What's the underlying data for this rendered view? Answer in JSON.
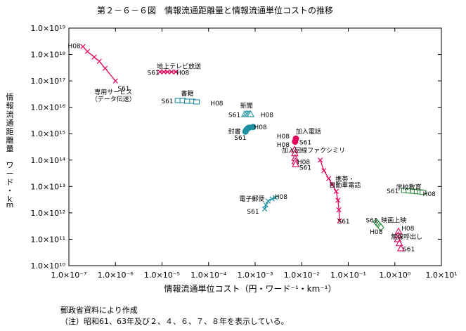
{
  "chart_data": {
    "type": "scatter",
    "title": "第２－６－６図　情報流通距離量と情報流通単位コストの推移",
    "xlabel": "情報流通単位コスト（円・ワード⁻¹・km⁻¹）",
    "ylabel": "情報流通距離量　ワード・km",
    "xscale": "log",
    "yscale": "log",
    "xlim": [
      1e-07,
      10
    ],
    "ylim": [
      10000000000.0,
      1e+19
    ],
    "grid": false,
    "x_ticks": [
      {
        "value": 1e-07,
        "label": "1.0×10⁻⁷"
      },
      {
        "value": 1e-06,
        "label": "1.0×10⁻⁶"
      },
      {
        "value": 1e-05,
        "label": "1.0×10⁻⁵"
      },
      {
        "value": 0.0001,
        "label": "1.0×10⁻⁴"
      },
      {
        "value": 0.001,
        "label": "1.0×10⁻³"
      },
      {
        "value": 0.01,
        "label": "1.0×10⁻²"
      },
      {
        "value": 0.1,
        "label": "1.0×10⁻¹"
      },
      {
        "value": 1,
        "label": "1.0×10⁰"
      },
      {
        "value": 10,
        "label": "1.0×10¹"
      }
    ],
    "y_ticks": [
      {
        "value": 10000000000.0,
        "label": "1.0×10¹⁰"
      },
      {
        "value": 100000000000.0,
        "label": "1.0×10¹¹"
      },
      {
        "value": 1000000000000.0,
        "label": "1.0×10¹²"
      },
      {
        "value": 10000000000000.0,
        "label": "1.0×10¹³"
      },
      {
        "value": 100000000000000.0,
        "label": "1.0×10¹⁴"
      },
      {
        "value": 1000000000000000.0,
        "label": "1.0×10¹⁵"
      },
      {
        "value": 1e+16,
        "label": "1.0×10¹⁶"
      },
      {
        "value": 1e+17,
        "label": "1.0×10¹⁷"
      },
      {
        "value": 1e+18,
        "label": "1.0×10¹⁸"
      },
      {
        "value": 1e+19,
        "label": "1.0×10¹⁹"
      }
    ],
    "series": [
      {
        "name": "専用サービス（データ伝送）",
        "color": "#e0005a",
        "marker": "x",
        "connected": true,
        "x": [
          1e-06,
          6e-07,
          4.5e-07,
          3.5e-07,
          2.5e-07,
          2e-07
        ],
        "y": [
          1e+17,
          3e+17,
          5.5e+17,
          8e+17,
          1.3e+18,
          2e+18
        ]
      },
      {
        "name": "地上テレビ放送",
        "color": "#e0005a",
        "marker": "x",
        "connected": true,
        "x": [
          2e-05,
          1.6e-05,
          1.3e-05,
          1.1e-05,
          9e-06
        ],
        "y": [
          2.2e+17,
          2.2e+17,
          2.2e+17,
          2.2e+17,
          2.2e+17
        ]
      },
      {
        "name": "書籍",
        "color": "#1e8fa0",
        "marker": "rect-open",
        "connected": false,
        "x": [
          2.2e-05,
          2.8e-05,
          3.5e-05,
          4.5e-05,
          5.5e-05
        ],
        "y": [
          1.8e+16,
          1.8e+16,
          1.7e+16,
          1.7e+16,
          1.6e+16
        ]
      },
      {
        "name": "新聞",
        "color": "#1e8fa0",
        "marker": "triangle-open",
        "connected": false,
        "x": [
          0.0006,
          0.00065,
          0.0007,
          0.00075,
          0.0008
        ],
        "y": [
          5500000000000000.0,
          5500000000000000.0,
          5500000000000000.0,
          5500000000000000.0,
          5500000000000000.0
        ]
      },
      {
        "name": "封書",
        "color": "#1e8fa0",
        "marker": "dot",
        "connected": true,
        "x": [
          0.00062,
          0.00065,
          0.0007,
          0.00075,
          0.0009
        ],
        "y": [
          1200000000000000.0,
          1400000000000000.0,
          1600000000000000.0,
          1700000000000000.0,
          1800000000000000.0
        ]
      },
      {
        "name": "加入電話",
        "color": "#e0005a",
        "marker": "dot",
        "connected": false,
        "x": [
          0.0075,
          0.0072
        ],
        "y": [
          650000000000000.0,
          500000000000000.0
        ]
      },
      {
        "name": "加入回線ファクシミリ",
        "color": "#e0005a",
        "marker": "triangle-open",
        "connected": false,
        "x": [
          0.007,
          0.0071,
          0.0072,
          0.0073,
          0.0074
        ],
        "y": [
          250000000000000.0,
          180000000000000.0,
          120000000000000.0,
          90000000000000.0,
          70000000000000.0
        ]
      },
      {
        "name": "携帯・自動車電話",
        "color": "#e0005a",
        "marker": "x",
        "connected": true,
        "x": [
          0.065,
          0.063,
          0.06,
          0.055,
          0.045,
          0.038,
          0.03,
          0.025
        ],
        "y": [
          500000000000.0,
          1300000000000.0,
          3000000000000.0,
          6500000000000.0,
          12000000000000.0,
          20000000000000.0,
          40000000000000.0,
          100000000000000.0
        ]
      },
      {
        "name": "学校教育",
        "color": "#2a8a3a",
        "marker": "rect-open",
        "connected": false,
        "x": [
          1.6,
          2.0,
          2.5,
          3.0,
          3.5,
          4.0
        ],
        "y": [
          7000000000000.0,
          6800000000000.0,
          6600000000000.0,
          6400000000000.0,
          6200000000000.0,
          6000000000000.0
        ]
      },
      {
        "name": "電子郵便",
        "color": "#1e8fa0",
        "marker": "x",
        "connected": true,
        "x": [
          0.0016,
          0.0017,
          0.0019,
          0.0023,
          0.0027
        ],
        "y": [
          1400000000000.0,
          2000000000000.0,
          2800000000000.0,
          3400000000000.0,
          3800000000000.0
        ]
      },
      {
        "name": "映画上映",
        "color": "#2a8a3a",
        "marker": "diamond-open",
        "connected": false,
        "x": [
          0.4,
          0.42,
          0.45,
          0.48,
          0.5
        ],
        "y": [
          450000000000.0,
          400000000000.0,
          350000000000.0,
          310000000000.0,
          280000000000.0
        ]
      },
      {
        "name": "無線呼出し",
        "color": "#e0005a",
        "marker": "triangle-open",
        "connected": false,
        "x": [
          1.2,
          1.18,
          1.15,
          1.25,
          1.35
        ],
        "y": [
          200000000000.0,
          140000000000.0,
          100000000000.0,
          70000000000.0,
          45000000000.0
        ]
      }
    ],
    "annotations": [
      {
        "text": "H08",
        "x": 1.3e-07,
        "y": 2.2e+18
      },
      {
        "text": "S61",
        "x": 1.5e-06,
        "y": 5.5e+16
      },
      {
        "text": "専用サービス",
        "x": 9e-07,
        "y": 4e+16
      },
      {
        "text": "（データ伝送）",
        "x": 9e-07,
        "y": 2.2e+16
      },
      {
        "text": "地上テレビ放送",
        "x": 2.3e-05,
        "y": 3.8e+17
      },
      {
        "text": "S61",
        "x": 6.5e-06,
        "y": 2.2e+17
      },
      {
        "text": "H08",
        "x": 2.8e-05,
        "y": 2.2e+17
      },
      {
        "text": "書籍",
        "x": 3.5e-05,
        "y": 3.6e+16
      },
      {
        "text": "S61",
        "x": 1.3e-05,
        "y": 1.8e+16
      },
      {
        "text": "H08",
        "x": 0.00015,
        "y": 1.5e+16
      },
      {
        "text": "新聞",
        "x": 0.00065,
        "y": 1.2e+16
      },
      {
        "text": "S61",
        "x": 0.00036,
        "y": 5500000000000000.0
      },
      {
        "text": "H08",
        "x": 0.0018,
        "y": 5500000000000000.0
      },
      {
        "text": "H08",
        "x": 0.0013,
        "y": 1900000000000000.0
      },
      {
        "text": "封書",
        "x": 0.00036,
        "y": 1300000000000000.0
      },
      {
        "text": "S61",
        "x": 0.00048,
        "y": 750000000000000.0
      },
      {
        "text": "加入電話",
        "x": 0.014,
        "y": 1300000000000000.0
      },
      {
        "text": "H08",
        "x": 0.004,
        "y": 850000000000000.0
      },
      {
        "text": "S61",
        "x": 0.012,
        "y": 500000000000000.0
      },
      {
        "text": "H08",
        "x": 0.004,
        "y": 400000000000000.0
      },
      {
        "text": "加入回線ファクシミリ",
        "x": 0.018,
        "y": 250000000000000.0
      },
      {
        "text": "H08",
        "x": 0.011,
        "y": 90000000000000.0
      },
      {
        "text": "S61",
        "x": 0.012,
        "y": 55000000000000.0
      },
      {
        "text": "携帯・",
        "x": 0.085,
        "y": 20000000000000.0
      },
      {
        "text": "自動車電話",
        "x": 0.085,
        "y": 12000000000000.0
      },
      {
        "text": "S61",
        "x": 0.08,
        "y": 500000000000.0
      },
      {
        "text": "学校教育",
        "x": 2.0,
        "y": 10000000000000.0
      },
      {
        "text": "S61",
        "x": 0.9,
        "y": 7000000000000.0
      },
      {
        "text": "H08",
        "x": 5.5,
        "y": 5500000000000.0
      },
      {
        "text": "H08",
        "x": 0.0036,
        "y": 4300000000000.0
      },
      {
        "text": "電子郵便",
        "x": 0.00085,
        "y": 3600000000000.0
      },
      {
        "text": "S61",
        "x": 0.0009,
        "y": 1200000000000.0
      },
      {
        "text": "S61",
        "x": 0.32,
        "y": 550000000000.0
      },
      {
        "text": "映画上映",
        "x": 0.95,
        "y": 550000000000.0
      },
      {
        "text": "H08",
        "x": 0.4,
        "y": 200000000000.0
      },
      {
        "text": "H08",
        "x": 1.9,
        "y": 270000000000.0
      },
      {
        "text": "無線呼出し",
        "x": 1.8,
        "y": 130000000000.0
      },
      {
        "text": "S61",
        "x": 2.0,
        "y": 45000000000.0
      }
    ]
  },
  "notes": {
    "source": "郵政省資料により作成",
    "note": "（注）昭和61、63年及び２、４、６、７、８年を表示している。"
  }
}
